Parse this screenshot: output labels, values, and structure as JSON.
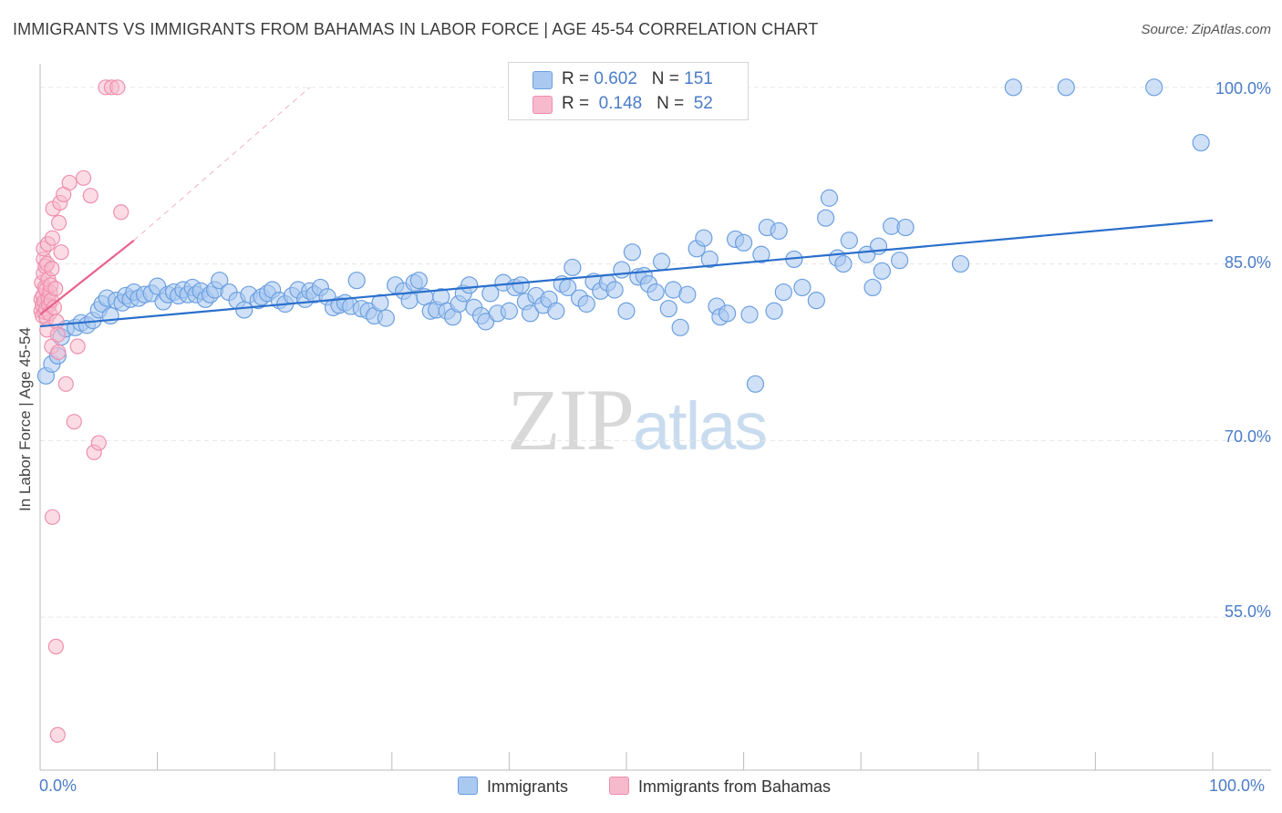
{
  "header": {
    "title": "IMMIGRANTS VS IMMIGRANTS FROM BAHAMAS IN LABOR FORCE | AGE 45-54 CORRELATION CHART",
    "source": "Source: ZipAtlas.com"
  },
  "legend": {
    "r_label": "R =",
    "n_label": "N =",
    "rows": [
      {
        "r": "0.602",
        "n": "151"
      },
      {
        "r": "0.148",
        "n": "52"
      }
    ]
  },
  "watermark": {
    "zip": "ZIP",
    "atlas": "atlas"
  },
  "colors": {
    "blue_fill": "#aac9f0",
    "blue_stroke": "#6b9fe0",
    "blue_line": "#2a6fcc",
    "pink_fill": "#f7b9cc",
    "pink_stroke": "#ee8fae",
    "pink_line": "#e8638d",
    "grid": "#e6e6e6",
    "axis_text": "#4a7cc9"
  },
  "chart_data": {
    "type": "scatter",
    "title": "IMMIGRANTS VS IMMIGRANTS FROM BAHAMAS IN LABOR FORCE | AGE 45-54 CORRELATION CHART",
    "xlabel": "",
    "ylabel": "In Labor Force | Age 45-54",
    "xlim": [
      0,
      100
    ],
    "ylim": [
      42,
      102
    ],
    "x_tick_labels": [
      "0.0%",
      "100.0%"
    ],
    "y_ticks": [
      55,
      70,
      85,
      100
    ],
    "y_tick_labels": [
      "55.0%",
      "70.0%",
      "85.0%",
      "100.0%"
    ],
    "grid": true,
    "legend": [
      "Immigrants",
      "Immigrants from Bahamas"
    ],
    "series": [
      {
        "name": "Immigrants",
        "r": 0.602,
        "n": 151,
        "trend": {
          "x": [
            0,
            100
          ],
          "y": [
            79.7,
            88.7
          ],
          "solid": true
        },
        "points": [
          [
            0.5,
            75.5
          ],
          [
            1.0,
            76.5
          ],
          [
            1.5,
            77.2
          ],
          [
            1.8,
            78.8
          ],
          [
            2.2,
            79.5
          ],
          [
            3.0,
            79.6
          ],
          [
            3.5,
            80.0
          ],
          [
            4.0,
            79.8
          ],
          [
            4.5,
            80.2
          ],
          [
            5.0,
            81.1
          ],
          [
            5.3,
            81.6
          ],
          [
            5.7,
            82.1
          ],
          [
            6.0,
            80.6
          ],
          [
            6.5,
            81.9
          ],
          [
            7.0,
            81.7
          ],
          [
            7.3,
            82.3
          ],
          [
            7.7,
            82.0
          ],
          [
            8.0,
            82.6
          ],
          [
            8.4,
            82.1
          ],
          [
            8.9,
            82.4
          ],
          [
            9.5,
            82.5
          ],
          [
            10.0,
            83.1
          ],
          [
            10.5,
            81.8
          ],
          [
            10.9,
            82.4
          ],
          [
            11.4,
            82.6
          ],
          [
            11.8,
            82.3
          ],
          [
            12.2,
            82.8
          ],
          [
            12.6,
            82.4
          ],
          [
            13.0,
            83.0
          ],
          [
            13.3,
            82.4
          ],
          [
            13.7,
            82.7
          ],
          [
            14.1,
            82.0
          ],
          [
            14.5,
            82.4
          ],
          [
            14.9,
            82.8
          ],
          [
            15.3,
            83.6
          ],
          [
            16.1,
            82.6
          ],
          [
            16.8,
            81.9
          ],
          [
            17.4,
            81.1
          ],
          [
            17.8,
            82.4
          ],
          [
            18.6,
            81.9
          ],
          [
            18.9,
            82.2
          ],
          [
            19.4,
            82.5
          ],
          [
            19.8,
            82.8
          ],
          [
            20.4,
            81.9
          ],
          [
            20.9,
            81.6
          ],
          [
            21.5,
            82.3
          ],
          [
            22.0,
            82.8
          ],
          [
            22.6,
            82.0
          ],
          [
            23.0,
            82.7
          ],
          [
            23.4,
            82.4
          ],
          [
            23.9,
            83.0
          ],
          [
            24.5,
            82.2
          ],
          [
            25.0,
            81.3
          ],
          [
            25.5,
            81.5
          ],
          [
            26.0,
            81.7
          ],
          [
            26.5,
            81.4
          ],
          [
            27.0,
            83.6
          ],
          [
            27.4,
            81.2
          ],
          [
            28.0,
            81.0
          ],
          [
            28.5,
            80.6
          ],
          [
            29.0,
            81.7
          ],
          [
            29.5,
            80.4
          ],
          [
            30.3,
            83.2
          ],
          [
            31.0,
            82.7
          ],
          [
            31.5,
            81.9
          ],
          [
            31.9,
            83.4
          ],
          [
            32.3,
            83.6
          ],
          [
            32.8,
            82.2
          ],
          [
            33.3,
            81.0
          ],
          [
            33.8,
            81.1
          ],
          [
            34.2,
            82.2
          ],
          [
            34.7,
            81.0
          ],
          [
            35.2,
            80.5
          ],
          [
            35.7,
            81.6
          ],
          [
            36.1,
            82.5
          ],
          [
            36.6,
            83.2
          ],
          [
            37.0,
            81.3
          ],
          [
            37.6,
            80.6
          ],
          [
            38.0,
            80.1
          ],
          [
            38.4,
            82.5
          ],
          [
            39.0,
            80.8
          ],
          [
            39.5,
            83.4
          ],
          [
            40.0,
            81.0
          ],
          [
            40.5,
            83.0
          ],
          [
            41.0,
            83.2
          ],
          [
            41.4,
            81.8
          ],
          [
            41.8,
            80.8
          ],
          [
            42.3,
            82.3
          ],
          [
            42.9,
            81.5
          ],
          [
            43.4,
            82.0
          ],
          [
            44.0,
            81.0
          ],
          [
            44.5,
            83.3
          ],
          [
            45.0,
            83.0
          ],
          [
            45.4,
            84.7
          ],
          [
            46.0,
            82.1
          ],
          [
            46.6,
            81.6
          ],
          [
            47.2,
            83.5
          ],
          [
            47.8,
            82.7
          ],
          [
            48.4,
            83.4
          ],
          [
            49.0,
            82.8
          ],
          [
            49.6,
            84.5
          ],
          [
            50.0,
            81.0
          ],
          [
            50.5,
            86.0
          ],
          [
            51.0,
            83.9
          ],
          [
            51.5,
            84.0
          ],
          [
            51.9,
            83.3
          ],
          [
            52.5,
            82.6
          ],
          [
            53.0,
            85.2
          ],
          [
            53.6,
            81.2
          ],
          [
            54.0,
            82.8
          ],
          [
            54.6,
            79.6
          ],
          [
            55.2,
            82.4
          ],
          [
            56.0,
            86.3
          ],
          [
            56.6,
            87.2
          ],
          [
            57.1,
            85.4
          ],
          [
            57.7,
            81.4
          ],
          [
            58.0,
            80.5
          ],
          [
            58.6,
            80.8
          ],
          [
            59.3,
            87.1
          ],
          [
            60.0,
            86.8
          ],
          [
            60.5,
            80.7
          ],
          [
            61.0,
            74.8
          ],
          [
            61.5,
            85.8
          ],
          [
            62.0,
            88.1
          ],
          [
            62.6,
            81.0
          ],
          [
            63.0,
            87.8
          ],
          [
            63.4,
            82.6
          ],
          [
            64.3,
            85.4
          ],
          [
            65.0,
            83.0
          ],
          [
            66.2,
            81.9
          ],
          [
            67.0,
            88.9
          ],
          [
            67.3,
            90.6
          ],
          [
            68.0,
            85.5
          ],
          [
            68.5,
            85.0
          ],
          [
            69.0,
            87.0
          ],
          [
            70.5,
            85.8
          ],
          [
            71.0,
            83.0
          ],
          [
            71.5,
            86.5
          ],
          [
            71.8,
            84.4
          ],
          [
            72.6,
            88.2
          ],
          [
            73.3,
            85.3
          ],
          [
            73.8,
            88.1
          ],
          [
            78.5,
            85.0
          ],
          [
            83.0,
            100.0
          ],
          [
            87.5,
            100.0
          ],
          [
            95.0,
            100.0
          ],
          [
            99.0,
            95.3
          ]
        ]
      },
      {
        "name": "Immigrants from Bahamas",
        "r": 0.148,
        "n": 52,
        "trend": {
          "x": [
            0,
            8.0
          ],
          "y": [
            80.7,
            87.0
          ],
          "solid": true,
          "extension": {
            "x": [
              8.0,
              23.0
            ],
            "y": [
              87.0,
              100.0
            ],
            "dashed": true
          }
        },
        "points": [
          [
            0.1,
            81.0
          ],
          [
            0.1,
            82.0
          ],
          [
            0.15,
            83.4
          ],
          [
            0.2,
            81.5
          ],
          [
            0.2,
            80.6
          ],
          [
            0.25,
            82.3
          ],
          [
            0.3,
            84.2
          ],
          [
            0.3,
            85.4
          ],
          [
            0.3,
            86.3
          ],
          [
            0.35,
            81.8
          ],
          [
            0.4,
            80.9
          ],
          [
            0.4,
            83.0
          ],
          [
            0.45,
            84.8
          ],
          [
            0.5,
            82.8
          ],
          [
            0.5,
            81.2
          ],
          [
            0.55,
            80.4
          ],
          [
            0.6,
            79.4
          ],
          [
            0.6,
            85.0
          ],
          [
            0.65,
            86.7
          ],
          [
            0.7,
            82.1
          ],
          [
            0.7,
            83.7
          ],
          [
            0.75,
            81.5
          ],
          [
            0.8,
            80.8
          ],
          [
            0.85,
            82.6
          ],
          [
            0.9,
            83.2
          ],
          [
            0.95,
            81.9
          ],
          [
            1.0,
            84.6
          ],
          [
            1.0,
            78.0
          ],
          [
            1.05,
            87.2
          ],
          [
            1.1,
            89.7
          ],
          [
            1.2,
            81.3
          ],
          [
            1.3,
            82.9
          ],
          [
            1.4,
            80.1
          ],
          [
            1.5,
            79.0
          ],
          [
            1.55,
            77.5
          ],
          [
            1.6,
            88.5
          ],
          [
            1.7,
            90.2
          ],
          [
            1.8,
            86.0
          ],
          [
            2.0,
            90.9
          ],
          [
            2.2,
            74.8
          ],
          [
            2.5,
            91.9
          ],
          [
            2.9,
            71.6
          ],
          [
            3.2,
            78.0
          ],
          [
            3.7,
            92.3
          ],
          [
            4.3,
            90.8
          ],
          [
            4.6,
            69.0
          ],
          [
            5.0,
            69.8
          ],
          [
            5.6,
            100.0
          ],
          [
            6.1,
            100.0
          ],
          [
            6.6,
            100.0
          ],
          [
            6.9,
            89.4
          ],
          [
            1.05,
            63.5
          ],
          [
            1.35,
            52.5
          ],
          [
            1.5,
            45.0
          ]
        ]
      }
    ]
  }
}
